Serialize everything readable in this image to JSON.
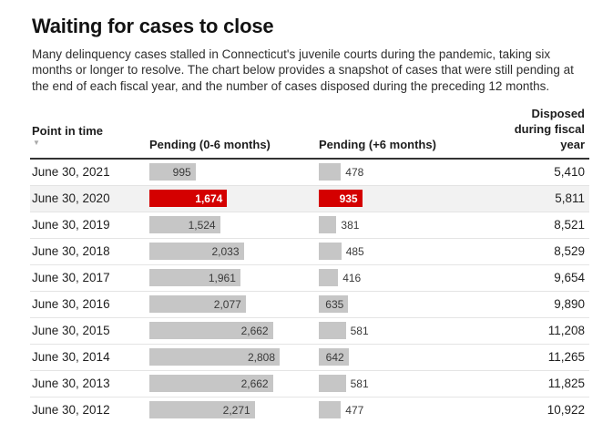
{
  "header": {
    "title": "Waiting for cases to close",
    "description": "Many delinquency cases stalled in Connecticut's juvenile courts during the pandemic, taking six months or longer to resolve. The chart below provides a snapshot of cases that were still pending at the end of each fiscal year, and the number of cases disposed during the preceding 12 months."
  },
  "table": {
    "columns": {
      "point_in_time": "Point in time",
      "pending_short": "Pending (0-6 months)",
      "pending_long": "Pending (+6 months)",
      "disposed": "Disposed during fiscal year"
    },
    "sort_icon": "▼",
    "rows": [
      {
        "date": "June 30, 2021",
        "pending_short": 995,
        "pending_short_label": "995",
        "pending_long": 478,
        "pending_long_label": "478",
        "disposed_label": "5,410",
        "highlight": false
      },
      {
        "date": "June 30, 2020",
        "pending_short": 1674,
        "pending_short_label": "1,674",
        "pending_long": 935,
        "pending_long_label": "935",
        "disposed_label": "5,811",
        "highlight": true
      },
      {
        "date": "June 30, 2019",
        "pending_short": 1524,
        "pending_short_label": "1,524",
        "pending_long": 381,
        "pending_long_label": "381",
        "disposed_label": "8,521",
        "highlight": false
      },
      {
        "date": "June 30, 2018",
        "pending_short": 2033,
        "pending_short_label": "2,033",
        "pending_long": 485,
        "pending_long_label": "485",
        "disposed_label": "8,529",
        "highlight": false
      },
      {
        "date": "June 30, 2017",
        "pending_short": 1961,
        "pending_short_label": "1,961",
        "pending_long": 416,
        "pending_long_label": "416",
        "disposed_label": "9,654",
        "highlight": false
      },
      {
        "date": "June 30, 2016",
        "pending_short": 2077,
        "pending_short_label": "2,077",
        "pending_long": 635,
        "pending_long_label": "635",
        "disposed_label": "9,890",
        "highlight": false
      },
      {
        "date": "June 30, 2015",
        "pending_short": 2662,
        "pending_short_label": "2,662",
        "pending_long": 581,
        "pending_long_label": "581",
        "disposed_label": "11,208",
        "highlight": false
      },
      {
        "date": "June 30, 2014",
        "pending_short": 2808,
        "pending_short_label": "2,808",
        "pending_long": 642,
        "pending_long_label": "642",
        "disposed_label": "11,265",
        "highlight": false
      },
      {
        "date": "June 30, 2013",
        "pending_short": 2662,
        "pending_short_label": "2,662",
        "pending_long": 581,
        "pending_long_label": "581",
        "disposed_label": "11,825",
        "highlight": false
      },
      {
        "date": "June 30, 2012",
        "pending_short": 2271,
        "pending_short_label": "2,271",
        "pending_long": 477,
        "pending_long_label": "477",
        "disposed_label": "10,922",
        "highlight": false
      }
    ]
  },
  "colors": {
    "bar_gray": "#c6c6c6",
    "bar_red": "#d40000",
    "highlight_row_bg": "#f2f2f2",
    "label_dark": "#3a3a3a",
    "label_light": "#ffffff"
  },
  "chart_data": {
    "type": "table",
    "title": "Waiting for cases to close",
    "subtitle": "Many delinquency cases stalled in Connecticut's juvenile courts during the pandemic, taking six months or longer to resolve. The chart below provides a snapshot of cases that were still pending at the end of each fiscal year, and the number of cases disposed during the preceding 12 months.",
    "categories": [
      "June 30, 2021",
      "June 30, 2020",
      "June 30, 2019",
      "June 30, 2018",
      "June 30, 2017",
      "June 30, 2016",
      "June 30, 2015",
      "June 30, 2014",
      "June 30, 2013",
      "June 30, 2012"
    ],
    "series": [
      {
        "name": "Pending (0-6 months)",
        "values": [
          995,
          1674,
          1524,
          2033,
          1961,
          2077,
          2662,
          2808,
          2662,
          2271
        ]
      },
      {
        "name": "Pending (+6 months)",
        "values": [
          478,
          935,
          381,
          485,
          416,
          635,
          581,
          642,
          581,
          477
        ]
      },
      {
        "name": "Disposed during fiscal year",
        "values": [
          5410,
          5811,
          8521,
          8529,
          9654,
          9890,
          11208,
          11265,
          11825,
          10922
        ]
      }
    ],
    "highlighted_category": "June 30, 2020",
    "bar_columns_shared_scale_max": 2808,
    "sort": {
      "column": "Point in time",
      "direction": "descending"
    },
    "legend_position": "none",
    "grid": "horizontal-row-dividers"
  }
}
